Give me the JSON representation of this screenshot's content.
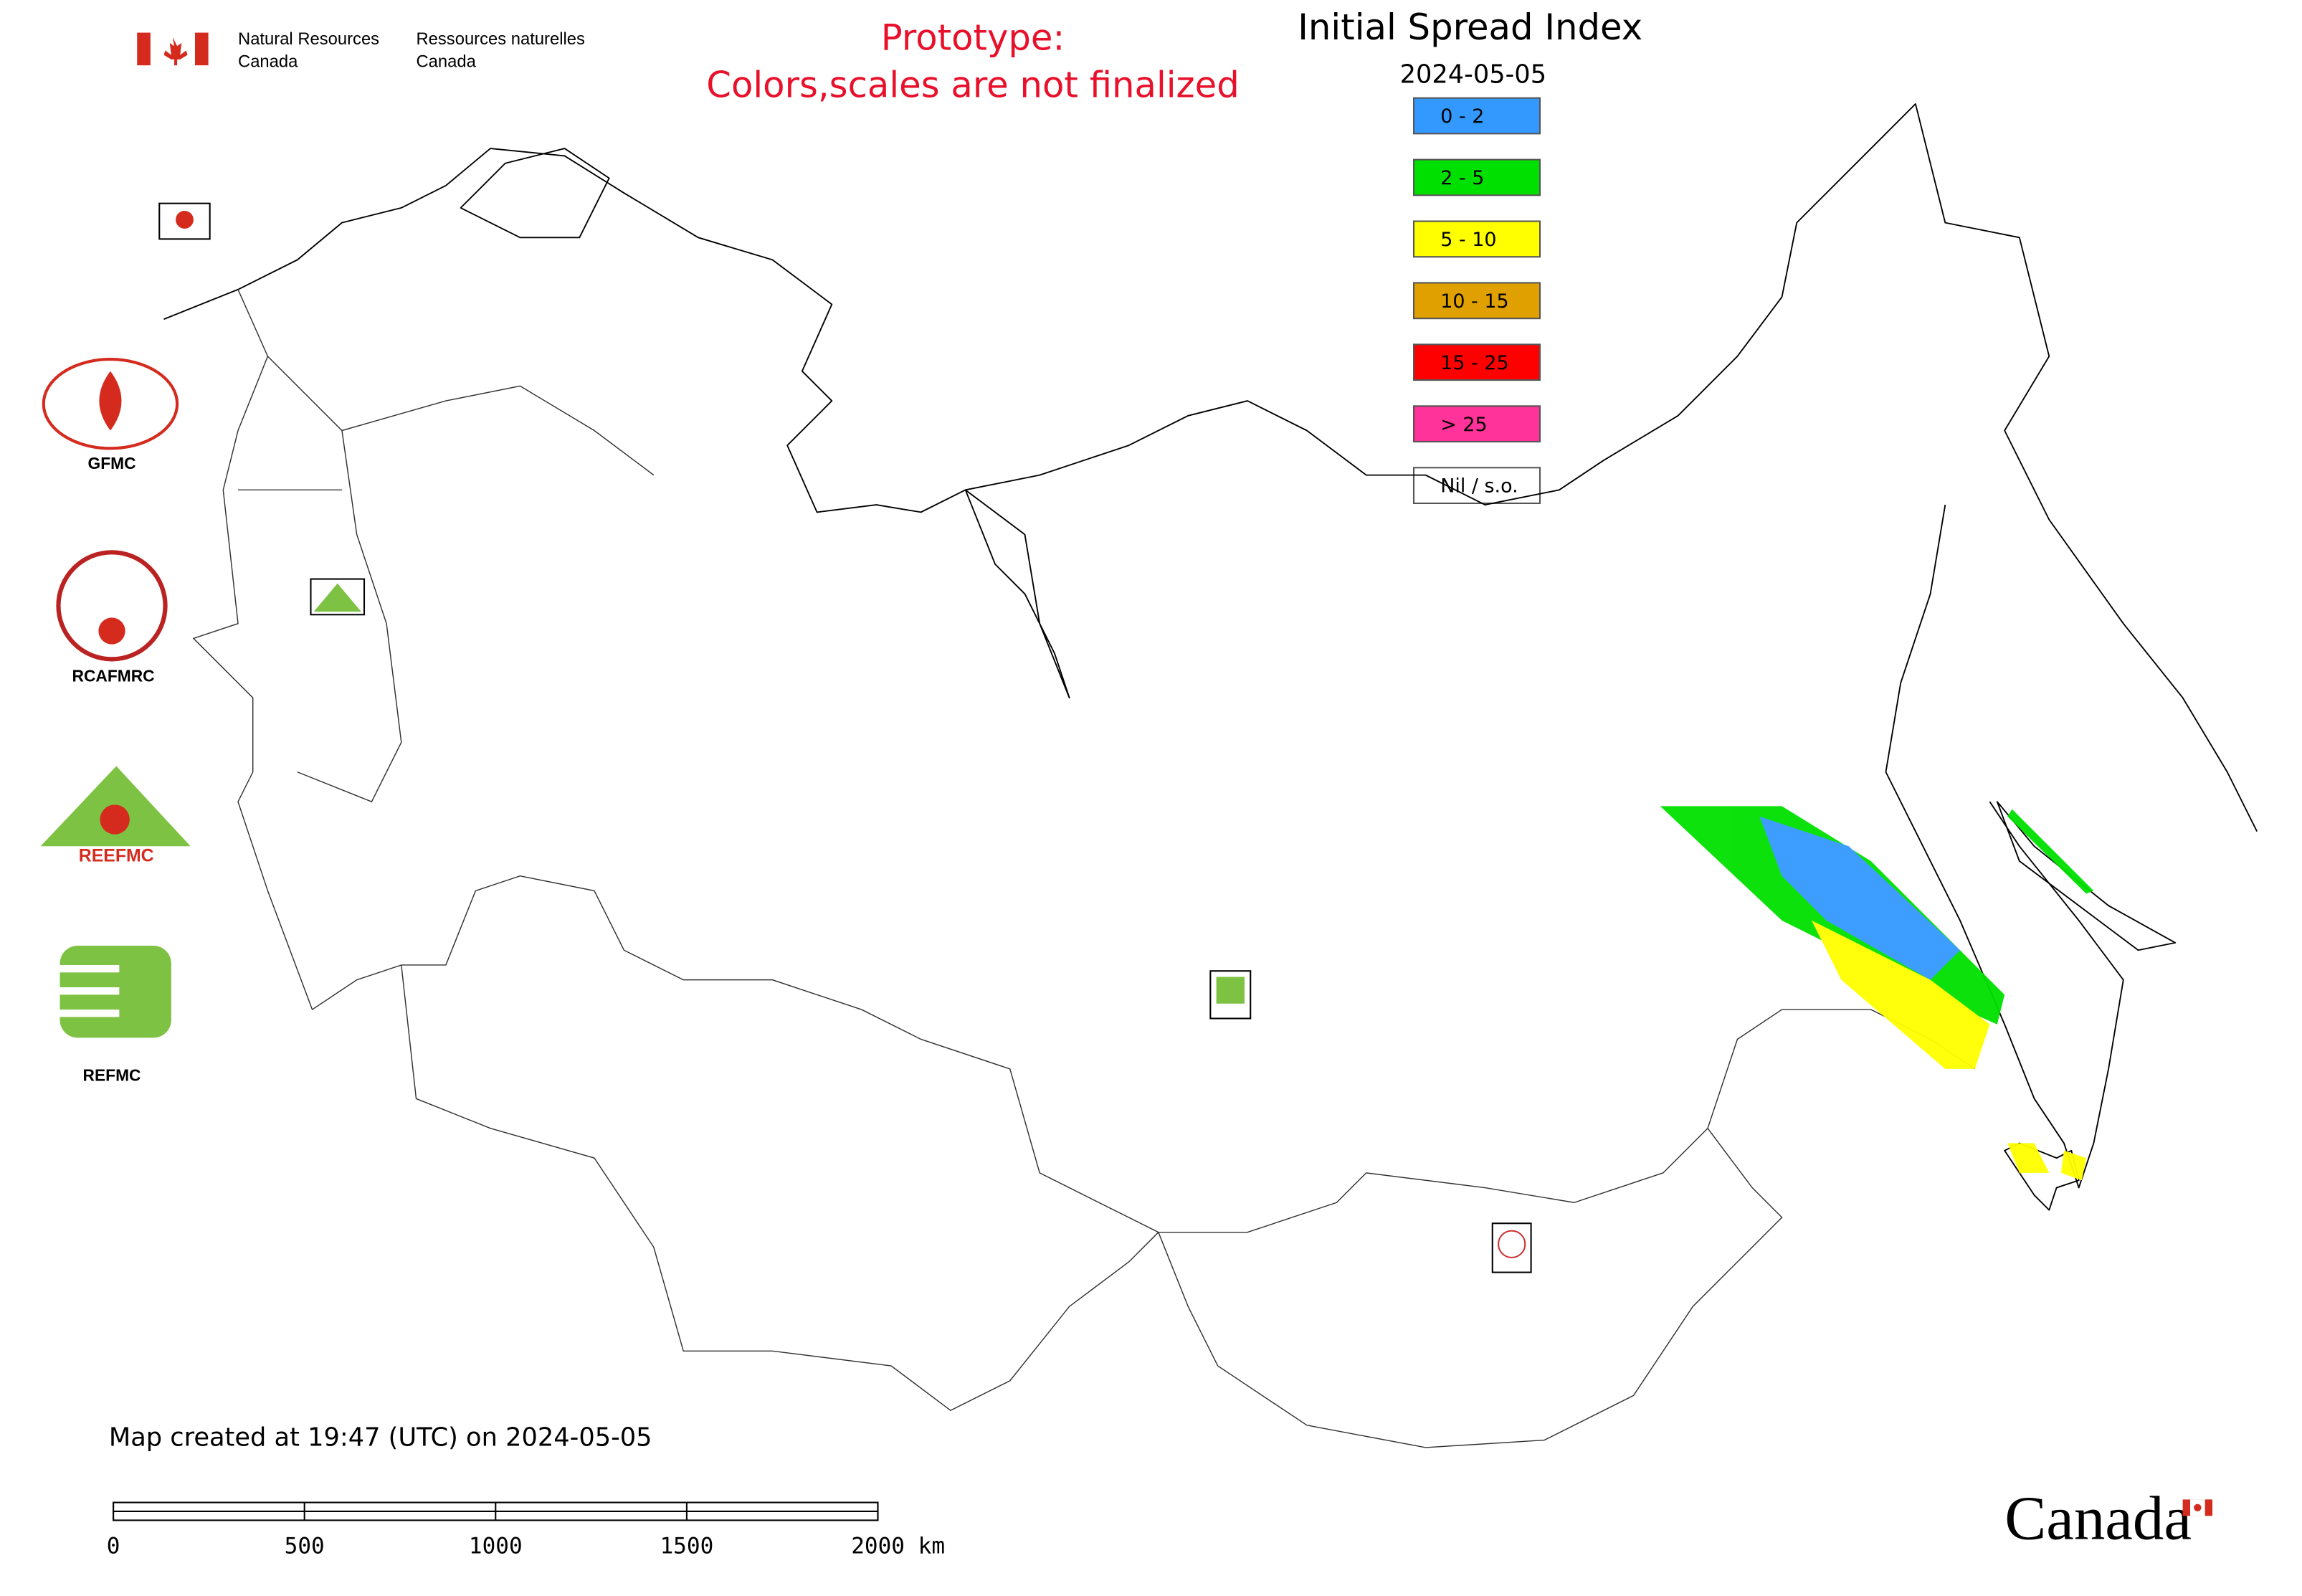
{
  "header": {
    "agency_en_line1": "Natural Resources",
    "agency_en_line2": "Canada",
    "agency_fr_line1": "Ressources naturelles",
    "agency_fr_line2": "Canada"
  },
  "notice": {
    "line1": "Prototype:",
    "line2": "Colors,scales are not finalized"
  },
  "map": {
    "title": "Initial Spread Index",
    "date": "2024-05-05",
    "legend": [
      {
        "label": "0 - 2",
        "color": "#3399ff"
      },
      {
        "label": "2 - 5",
        "color": "#00e000"
      },
      {
        "label": "5 - 10",
        "color": "#ffff00"
      },
      {
        "label": "10 - 15",
        "color": "#e0a000"
      },
      {
        "label": "15 - 25",
        "color": "#ff0000"
      },
      {
        "label": "> 25",
        "color": "#ff3399"
      },
      {
        "label": "Nil / s.o.",
        "color": "#ffffff"
      }
    ],
    "logos": [
      "GFMC",
      "RCAFMRC",
      "REEFMC",
      "REFMC"
    ],
    "created": "Map created at 19:47 (UTC) on 2024-05-05",
    "scale_bar": [
      "0",
      "500",
      "1000",
      "1500",
      "2000 km"
    ]
  },
  "footer": {
    "wordmark": "Canada"
  }
}
